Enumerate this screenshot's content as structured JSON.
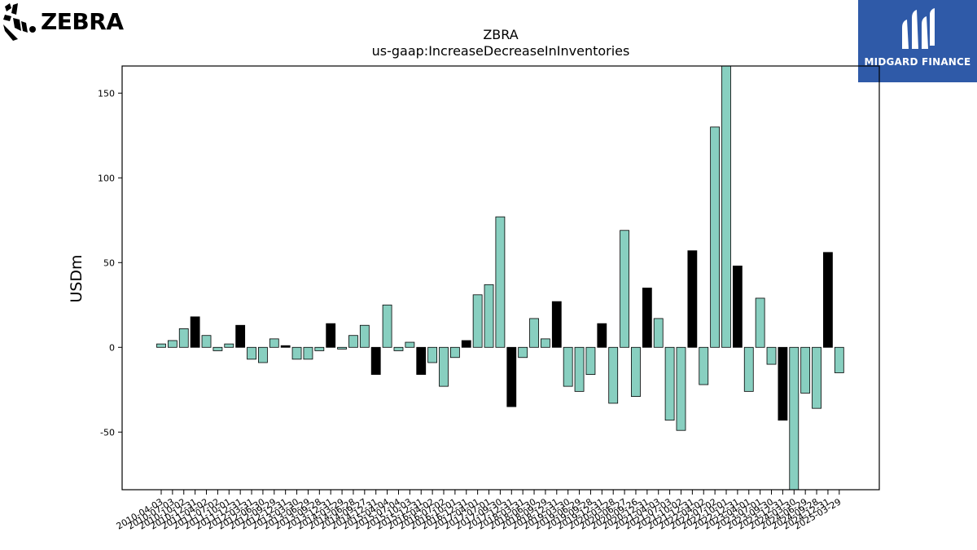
{
  "logos": {
    "left_brand": "ZEBRA",
    "right_brand": "MIDGARD FINANCE"
  },
  "colors": {
    "bar_default": "#88cfc0",
    "bar_highlight": "#000000",
    "axis": "#000000",
    "brand_blue": "#2f5aa8"
  },
  "chart_data": {
    "type": "bar",
    "title": "ZBRA",
    "subtitle": "us-gaap:IncreaseDecreaseInInventories",
    "ylabel": "USDm",
    "xlabel": "",
    "ylim": [
      -84,
      166
    ],
    "yticks": [
      -50,
      0,
      50,
      100,
      150
    ],
    "grid": false,
    "legend": "none",
    "categories": [
      "2010-04-03",
      "2010-07-03",
      "2010-10-02",
      "2010-12-31",
      "2011-04-02",
      "2011-07-02",
      "2011-10-01",
      "2011-12-31",
      "2012-03-31",
      "2012-06-30",
      "2012-09-29",
      "2012-12-31",
      "2013-03-30",
      "2013-06-29",
      "2013-09-28",
      "2013-12-31",
      "2014-03-29",
      "2014-06-28",
      "2014-09-27",
      "2014-12-31",
      "2015-04-04",
      "2015-07-04",
      "2015-10-03",
      "2015-12-31",
      "2016-04-02",
      "2016-07-02",
      "2016-10-01",
      "2016-12-31",
      "2017-04-01",
      "2017-07-01",
      "2017-09-30",
      "2017-12-31",
      "2018-03-31",
      "2018-06-30",
      "2018-09-29",
      "2018-12-31",
      "2019-03-30",
      "2019-06-29",
      "2019-09-28",
      "2019-12-31",
      "2020-03-28",
      "2020-06-27",
      "2020-09-26",
      "2020-12-31",
      "2021-04-03",
      "2021-07-03",
      "2021-10-02",
      "2021-12-31",
      "2022-04-02",
      "2022-07-02",
      "2022-10-01",
      "2022-12-31",
      "2023-04-01",
      "2023-07-01",
      "2023-09-30",
      "2023-12-31",
      "2024-03-30",
      "2024-06-29",
      "2024-09-28",
      "2024-12-31",
      "2025-03-29"
    ],
    "values": [
      2,
      4,
      11,
      18,
      7,
      -2,
      2,
      13,
      -7,
      -9,
      5,
      1,
      -7,
      -7,
      -2,
      14,
      -1,
      7,
      13,
      -16,
      25,
      -2,
      3,
      -16,
      -9,
      -23,
      -6,
      4,
      31,
      37,
      77,
      -35,
      -6,
      17,
      5,
      27,
      -23,
      -26,
      -16,
      14,
      -33,
      69,
      -29,
      35,
      17,
      -43,
      -49,
      57,
      -22,
      130,
      166,
      48,
      -26,
      29,
      -10,
      -43,
      -84,
      -27,
      -36,
      56,
      -15
    ],
    "highlight_categories": [
      "2010-12-31",
      "2011-12-31",
      "2012-12-31",
      "2013-12-31",
      "2014-12-31",
      "2015-12-31",
      "2016-12-31",
      "2017-12-31",
      "2018-12-31",
      "2019-12-31",
      "2020-12-31",
      "2021-12-31",
      "2022-12-31",
      "2023-12-31",
      "2024-12-31"
    ],
    "x_tick_labels_shown": [
      "2010-04-03",
      "2010-07-03",
      "2010-10-02",
      "2010-12-31",
      "2011-04-02",
      "2011-07-02",
      "2011-10-01",
      "2011-12-31",
      "2012-03-31",
      "2012-06-30",
      "2012-09-29",
      "2012-12-31",
      "2013-03-30",
      "2013-06-29",
      "2013-09-28",
      "2013-12-31",
      "2014-03-29",
      "2014-06-28",
      "2014-09-27",
      "2014-12-31",
      "2015-04-04",
      "2015-07-04",
      "2015-10-03",
      "2015-12-31",
      "2016-04-02",
      "2016-07-02",
      "2016-10-01",
      "2016-12-31",
      "2017-04-01",
      "2017-07-01",
      "2017-09-30",
      "2017-12-31",
      "2018-03-31",
      "2018-06-30",
      "2018-09-29",
      "2018-12-31",
      "2019-03-30",
      "2019-06-29",
      "2019-09-28",
      "2019-12-31",
      "2020-03-28",
      "2020-06-27",
      "2020-09-26",
      "2020-12-31",
      "2021-04-03",
      "2021-07-03",
      "2021-10-02",
      "2021-12-31",
      "2022-04-02",
      "2022-07-02",
      "2022-10-01",
      "2022-12-31",
      "2023-04-01",
      "2023-07-01",
      "2023-09-30",
      "2023-12-31",
      "2024-03-30",
      "2024-06-29",
      "2024-09-28",
      "2024-12-31",
      "2025-03-29"
    ]
  }
}
